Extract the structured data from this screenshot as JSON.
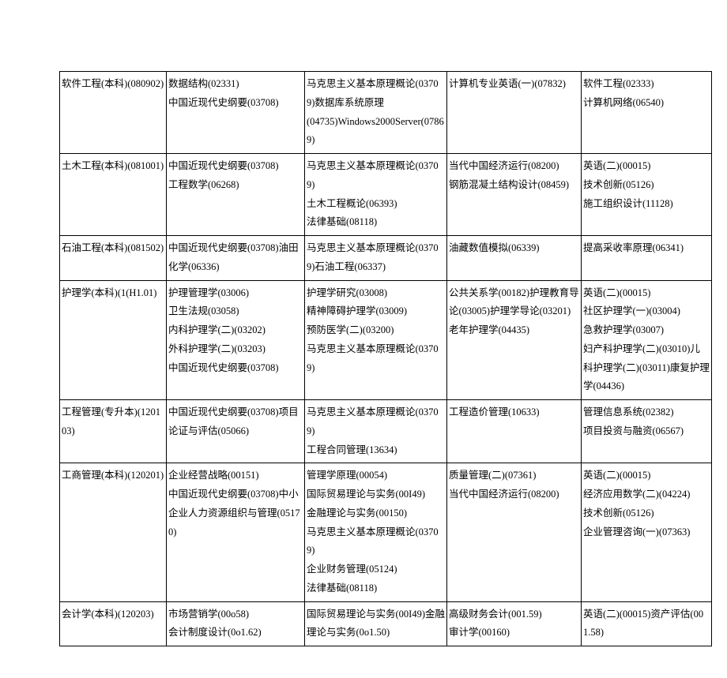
{
  "table": {
    "columns": [
      "c1",
      "c2",
      "c3",
      "c4",
      "c5"
    ],
    "rows": [
      {
        "c1": "软件工程(本科)(080902)",
        "c2": "数据结构(02331)\n中国近现代史纲要(03708)",
        "c3": "马克思主义基本原理概论(03709)数据库系统原理\n(04735)Windows2000Server(07869)",
        "c4": "计算机专业英语(一)(07832)",
        "c5": "软件工程(02333)\n计算机网络(06540)"
      },
      {
        "c1": "土木工程(本科)(081001)",
        "c2": "中国近现代史纲要(03708)\n工程数学(06268)",
        "c3": "马克思主义基本原理概论(03709)\n土木工程概论(06393)\n法律基础(08118)",
        "c4": "当代中国经济运行(08200)\n钢筋混凝土结构设计(08459)",
        "c5": "英语(二)(00015)\n技术创新(05126)\n施工组织设计(11128)"
      },
      {
        "c1": "石油工程(本科)(081502)",
        "c2": "中国近现代史纲要(03708)油田化学(06336)",
        "c3": "马克思主义基本原理概论(03709)石油工程(06337)",
        "c4": "油藏数值模拟(06339)",
        "c5": "提高采收率原理(06341)"
      },
      {
        "c1": "护理学(本科)(1(H1.01)",
        "c2": "护理管理学(03006)\n卫生法规(03058)\n内科护理学(二)(03202)\n外科护理学(二)(03203)\n中国近现代史纲要(03708)",
        "c3": "护理学研究(03008)\n精神障碍护理学(03009)\n预防医学(二)(03200)\n马克思主义基本原理概论(03709)",
        "c4": "公共关系学(00182)护理教育导论(03005)护理学导论(03201)老年护理学(04435)",
        "c5": "英语(二)(00015)\n社区护理学(一)(03004)\n急救护理学(03007)\n妇产科护理学(二)(03010)儿科护理学(二)(03011)康复护理学(04436)"
      },
      {
        "c1": "工程管理(专升本)(120103)",
        "c2": "中国近现代史纲要(03708)项目论证与评估(05066)",
        "c3": "马克思主义基本原理概论(03709)\n工程合同管理(13634)",
        "c4": "工程造价管理(10633)",
        "c5": "管理信息系统(02382)\n项目投资与融资(06567)"
      },
      {
        "c1": "工商管理(本科)(120201)",
        "c2": "企业经营战略(00151)\n中国近现代史纲要(03708)中小企业人力资源组织与管理(05170)",
        "c3": "管理学原理(00054)\n国际贸易理论与实务(00I49)\n金融理论与实务(00150)\n马克思主义基本原理概论(03709)\n企业财务管理(05124)\n法律基础(08118)",
        "c4": "质量管理(二)(07361)\n当代中国经济运行(08200)",
        "c5": "英语(二)(00015)\n经济应用数学(二)(04224)\n技术创新(05126)\n企业管理咨询(一)(07363)"
      },
      {
        "c1": "会计学(本科)(120203)",
        "c2": "市场营销学(00o58)\n会计制度设计(0o1.62)",
        "c3": "国际贸易理论与实务(00I49)金融理论与实务(0o1.50)",
        "c4": "高级财务会计(001.59)\n审计学(00160)",
        "c5": "英语(二)(00015)资产评估(001.58)"
      }
    ]
  }
}
